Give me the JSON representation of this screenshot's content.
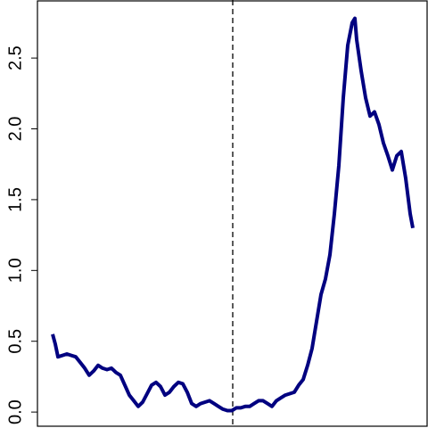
{
  "chart_data": {
    "type": "line",
    "x": [
      0,
      3,
      6,
      11,
      16,
      21,
      26,
      31,
      36,
      41,
      46,
      51,
      56,
      61,
      66,
      71,
      76,
      81,
      86,
      91,
      96,
      101,
      106,
      111,
      116,
      121,
      126,
      131,
      136,
      141,
      146,
      151,
      156,
      161,
      166,
      171,
      176,
      181,
      186,
      191,
      196,
      201,
      206,
      211,
      216,
      221,
      226,
      231,
      236,
      241,
      246,
      251,
      256,
      261,
      266,
      271,
      276,
      281,
      286,
      291,
      296,
      301,
      306,
      311,
      316,
      321,
      326,
      331,
      336,
      339,
      341,
      346,
      351,
      356,
      361,
      366,
      371,
      376,
      381,
      386,
      391,
      396,
      401,
      404
    ],
    "series": [
      {
        "name": null,
        "color": "#000080",
        "values": [
          0.55,
          0.48,
          0.39,
          0.4,
          0.41,
          0.4,
          0.39,
          0.35,
          0.31,
          0.26,
          0.29,
          0.33,
          0.31,
          0.3,
          0.31,
          0.28,
          0.26,
          0.19,
          0.12,
          0.08,
          0.04,
          0.07,
          0.13,
          0.19,
          0.21,
          0.18,
          0.12,
          0.14,
          0.18,
          0.21,
          0.2,
          0.14,
          0.06,
          0.04,
          0.06,
          0.07,
          0.08,
          0.06,
          0.04,
          0.02,
          0.01,
          0.01,
          0.03,
          0.03,
          0.04,
          0.04,
          0.06,
          0.08,
          0.08,
          0.06,
          0.04,
          0.08,
          0.1,
          0.12,
          0.13,
          0.14,
          0.19,
          0.23,
          0.33,
          0.45,
          0.64,
          0.83,
          0.94,
          1.11,
          1.4,
          1.74,
          2.22,
          2.59,
          2.75,
          2.78,
          2.63,
          2.41,
          2.22,
          2.09,
          2.12,
          2.03,
          1.9,
          1.81,
          1.71,
          1.81,
          1.84,
          1.65,
          1.4,
          1.3
        ]
      }
    ],
    "vline": 202,
    "xlim": [
      -17,
      421
    ],
    "ylim": [
      -0.1,
      2.91
    ],
    "yticks": [
      {
        "value": 0,
        "label": "0.0"
      },
      0.5,
      {
        "value": 1,
        "label": "1.0"
      },
      1.5,
      {
        "value": 2,
        "label": "2.0"
      },
      2.5
    ]
  }
}
